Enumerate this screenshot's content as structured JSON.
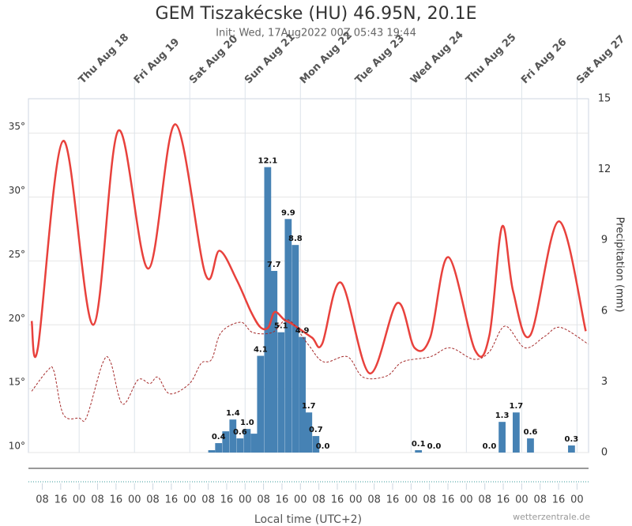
{
  "chart_data": {
    "type": "meteogram",
    "title": "GEM Tiszakécske (HU) 46.95N, 20.1E",
    "subtitle": "Init: Wed, 17Aug2022 00Z 05:43 19:44",
    "y2label": "Precipitation (mm)",
    "xlabel": "Local time (UTC+2)",
    "credit": "wetterzentrale.de",
    "xlim": [
      2,
      245
    ],
    "ylim": [
      10,
      37.7
    ],
    "y2lim": [
      0,
      15
    ],
    "grid": true,
    "yticks": [
      {
        "value": 10,
        "label": "10°"
      },
      {
        "value": 15,
        "label": "15°"
      },
      {
        "value": 20,
        "label": "20°"
      },
      {
        "value": 25,
        "label": "25°"
      },
      {
        "value": 30,
        "label": "30°"
      },
      {
        "value": 35,
        "label": "35°"
      }
    ],
    "y2ticks": [
      0,
      3,
      6,
      9,
      12,
      15
    ],
    "xticks": [
      {
        "value": 8,
        "label": "08"
      },
      {
        "value": 16,
        "label": "16"
      },
      {
        "value": 24,
        "label": "00"
      },
      {
        "value": 32,
        "label": "08"
      },
      {
        "value": 40,
        "label": "16"
      },
      {
        "value": 48,
        "label": "00"
      },
      {
        "value": 56,
        "label": "08"
      },
      {
        "value": 64,
        "label": "16"
      },
      {
        "value": 72,
        "label": "00"
      },
      {
        "value": 80,
        "label": "08"
      },
      {
        "value": 88,
        "label": "16"
      },
      {
        "value": 96,
        "label": "00"
      },
      {
        "value": 104,
        "label": "08"
      },
      {
        "value": 112,
        "label": "16"
      },
      {
        "value": 120,
        "label": "00"
      },
      {
        "value": 128,
        "label": "08"
      },
      {
        "value": 136,
        "label": "16"
      },
      {
        "value": 144,
        "label": "00"
      },
      {
        "value": 152,
        "label": "08"
      },
      {
        "value": 160,
        "label": "16"
      },
      {
        "value": 168,
        "label": "00"
      },
      {
        "value": 176,
        "label": "08"
      },
      {
        "value": 184,
        "label": "16"
      },
      {
        "value": 192,
        "label": "00"
      },
      {
        "value": 200,
        "label": "08"
      },
      {
        "value": 208,
        "label": "16"
      },
      {
        "value": 216,
        "label": "00"
      },
      {
        "value": 224,
        "label": "08"
      },
      {
        "value": 232,
        "label": "16"
      },
      {
        "value": 240,
        "label": "00"
      }
    ],
    "x2ticks": [
      {
        "value": 24,
        "label": "Thu Aug 18"
      },
      {
        "value": 48,
        "label": "Fri Aug 19"
      },
      {
        "value": 72,
        "label": "Sat Aug 20"
      },
      {
        "value": 96,
        "label": "Sun Aug 21"
      },
      {
        "value": 120,
        "label": "Mon Aug 22"
      },
      {
        "value": 144,
        "label": "Tue Aug 23"
      },
      {
        "value": 168,
        "label": "Wed Aug 24"
      },
      {
        "value": 192,
        "label": "Thu Aug 25"
      },
      {
        "value": 216,
        "label": "Fri Aug 26"
      },
      {
        "value": 240,
        "label": "Sat Aug 27"
      }
    ],
    "series": [
      {
        "type": "line",
        "color": "#e8413c",
        "x": [
          3.4,
          6.1,
          17.1,
          30.1,
          41,
          54,
          65.7,
          78.7,
          84.9,
          92.4,
          98.6,
          102.7,
          106.1,
          108.8,
          113,
          117,
          125,
          129.4,
          137.6,
          150,
          162,
          169.5,
          176.3,
          184.2,
          195.8,
          202,
          207.5,
          212.3,
          219.8,
          232.1,
          243.8
        ],
        "values": [
          20.3,
          18.2,
          34.4,
          20,
          35.2,
          24.4,
          35.7,
          24,
          25.8,
          23.5,
          21,
          19.8,
          19.8,
          21,
          20.4,
          20,
          19,
          18.5,
          23.3,
          16.2,
          21.7,
          18.2,
          19,
          25.3,
          18,
          19.2,
          27.7,
          22.6,
          19.2,
          28.1,
          19.5
        ]
      },
      {
        "type": "line",
        "dashed": true,
        "color": "#a52a2a",
        "x": [
          3.4,
          10.2,
          13,
          17.1,
          23.9,
          27.3,
          34.2,
          37.6,
          42.8,
          49.6,
          54.7,
          58.2,
          63.3,
          71.9,
          77,
          81.5,
          85.6,
          94.1,
          99.3,
          107.8,
          114.7,
          123.2,
          130.1,
          140.4,
          147.2,
          157.5,
          164.3,
          176.3,
          184.9,
          195.2,
          202,
          208.8,
          217.4,
          226,
          232.8,
          244.8
        ],
        "values": [
          14.8,
          16.4,
          16.4,
          13,
          12.7,
          12.8,
          17,
          17.1,
          13.8,
          15.7,
          15.4,
          15.9,
          14.6,
          15.4,
          17,
          17.3,
          19.4,
          20.2,
          19.4,
          19.4,
          20.4,
          18.5,
          17.1,
          17.5,
          15.9,
          16,
          17.1,
          17.5,
          18.2,
          17.3,
          17.9,
          19.9,
          18.2,
          19.1,
          19.8,
          18.5
        ]
      },
      {
        "type": "bar",
        "axis": "y2",
        "color": "#4682b4",
        "width": 3,
        "x": [
          81.5,
          84.5,
          87.6,
          90.7,
          93.8,
          96.9,
          99.9,
          102.7,
          105.8,
          108.5,
          111.6,
          114.7,
          117.8,
          120.8,
          123.6,
          126.7,
          129.7,
          171.2,
          178,
          202,
          207.5,
          213.6,
          219.8,
          237.6
        ],
        "values": [
          0.1,
          0.4,
          0.9,
          1.4,
          0.6,
          1.0,
          0.8,
          4.1,
          12.1,
          7.7,
          5.1,
          9.9,
          8.8,
          4.9,
          1.7,
          0.7,
          0.0,
          0.1,
          0.0,
          0.0,
          1.3,
          1.7,
          0.6,
          0.3
        ],
        "value_labels": [
          null,
          "0.4",
          null,
          "1.4",
          "0.6",
          "1.0",
          null,
          "4.1",
          "12.1",
          "7.7",
          "5.1",
          "9.9",
          "8.8",
          "4.9",
          "1.7",
          "0.7",
          "0.0",
          "0.1",
          "0.0",
          "0.0",
          "1.3",
          "1.7",
          "0.6",
          "0.3"
        ]
      }
    ]
  }
}
